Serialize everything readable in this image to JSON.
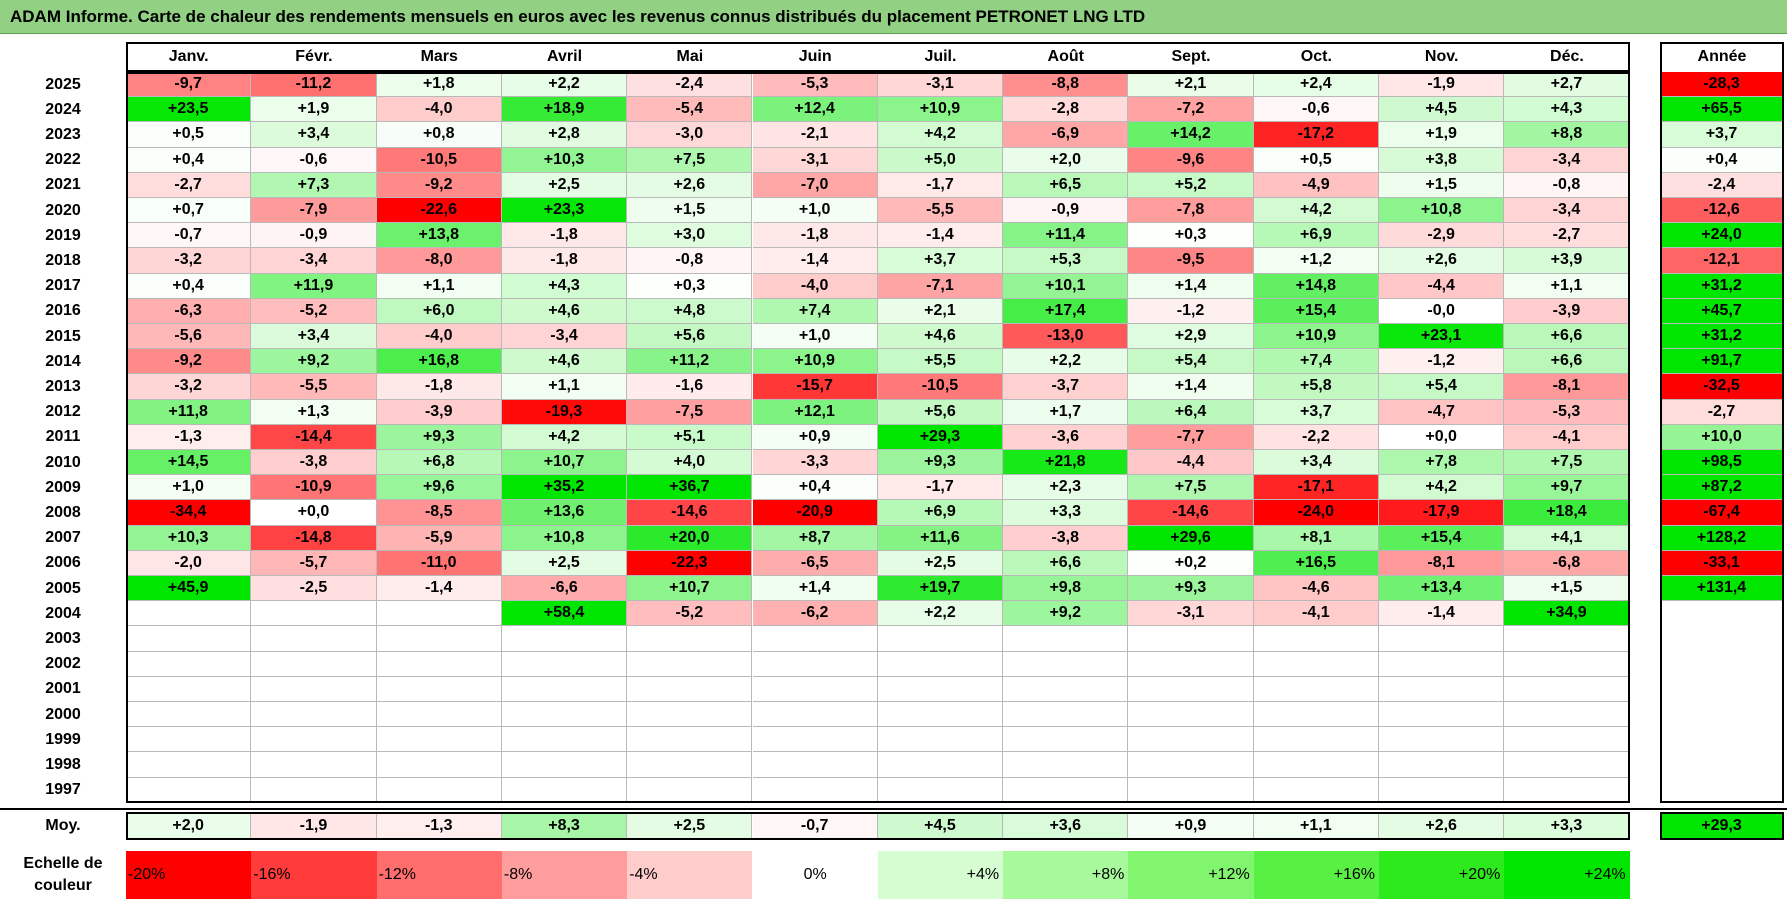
{
  "title": "ADAM Informe. Carte de chaleur des rendements mensuels en euros avec les revenus connus distribués du placement PETRONET LNG LTD",
  "chart_data": {
    "type": "heatmap",
    "columns": [
      "Janv.",
      "Févr.",
      "Mars",
      "Avril",
      "Mai",
      "Juin",
      "Juil.",
      "Août",
      "Sept.",
      "Oct.",
      "Nov.",
      "Déc."
    ],
    "year_header": "Année",
    "rows": [
      {
        "year": "2025",
        "values": [
          -9.7,
          -11.2,
          1.8,
          2.2,
          -2.4,
          -5.3,
          -3.1,
          -8.8,
          2.1,
          2.4,
          -1.9,
          2.7
        ],
        "annual": -28.3
      },
      {
        "year": "2024",
        "values": [
          23.5,
          1.9,
          -4.0,
          18.9,
          -5.4,
          12.4,
          10.9,
          -2.8,
          -7.2,
          -0.6,
          4.5,
          4.3
        ],
        "annual": 65.5
      },
      {
        "year": "2023",
        "values": [
          0.5,
          3.4,
          0.8,
          2.8,
          -3.0,
          -2.1,
          4.2,
          -6.9,
          14.2,
          -17.2,
          1.9,
          8.8
        ],
        "annual": 3.7
      },
      {
        "year": "2022",
        "values": [
          0.4,
          -0.6,
          -10.5,
          10.3,
          7.5,
          -3.1,
          5.0,
          2.0,
          -9.6,
          0.5,
          3.8,
          -3.4
        ],
        "annual": 0.4
      },
      {
        "year": "2021",
        "values": [
          -2.7,
          7.3,
          -9.2,
          2.5,
          2.6,
          -7.0,
          -1.7,
          6.5,
          5.2,
          -4.9,
          1.5,
          -0.8
        ],
        "annual": -2.4
      },
      {
        "year": "2020",
        "values": [
          0.7,
          -7.9,
          -22.6,
          23.3,
          1.5,
          1.0,
          -5.5,
          -0.9,
          -7.8,
          4.2,
          10.8,
          -3.4
        ],
        "annual": -12.6
      },
      {
        "year": "2019",
        "values": [
          -0.7,
          -0.9,
          13.8,
          -1.8,
          3.0,
          -1.8,
          -1.4,
          11.4,
          0.3,
          6.9,
          -2.9,
          -2.7
        ],
        "annual": 24.0
      },
      {
        "year": "2018",
        "values": [
          -3.2,
          -3.4,
          -8.0,
          -1.8,
          -0.8,
          -1.4,
          3.7,
          5.3,
          -9.5,
          1.2,
          2.6,
          3.9
        ],
        "annual": -12.1
      },
      {
        "year": "2017",
        "values": [
          0.4,
          11.9,
          1.1,
          4.3,
          0.3,
          -4.0,
          -7.1,
          10.1,
          1.4,
          14.8,
          -4.4,
          1.1
        ],
        "annual": 31.2
      },
      {
        "year": "2016",
        "values": [
          -6.3,
          -5.2,
          6.0,
          4.6,
          4.8,
          7.4,
          2.1,
          17.4,
          -1.2,
          15.4,
          -0.0,
          -3.9
        ],
        "annual": 45.7
      },
      {
        "year": "2015",
        "values": [
          -5.6,
          3.4,
          -4.0,
          -3.4,
          5.6,
          1.0,
          4.6,
          -13.0,
          2.9,
          10.9,
          23.1,
          6.6
        ],
        "annual": 31.2
      },
      {
        "year": "2014",
        "values": [
          -9.2,
          9.2,
          16.8,
          4.6,
          11.2,
          10.9,
          5.5,
          2.2,
          5.4,
          7.4,
          -1.2,
          6.6
        ],
        "annual": 91.7
      },
      {
        "year": "2013",
        "values": [
          -3.2,
          -5.5,
          -1.8,
          1.1,
          -1.6,
          -15.7,
          -10.5,
          -3.7,
          1.4,
          5.8,
          5.4,
          -8.1
        ],
        "annual": -32.5
      },
      {
        "year": "2012",
        "values": [
          11.8,
          1.3,
          -3.9,
          -19.3,
          -7.5,
          12.1,
          5.6,
          1.7,
          6.4,
          3.7,
          -4.7,
          -5.3
        ],
        "annual": -2.7
      },
      {
        "year": "2011",
        "values": [
          -1.3,
          -14.4,
          9.3,
          4.2,
          5.1,
          0.9,
          29.3,
          -3.6,
          -7.7,
          -2.2,
          0.0,
          -4.1
        ],
        "annual": 10.0
      },
      {
        "year": "2010",
        "values": [
          14.5,
          -3.8,
          6.8,
          10.7,
          4.0,
          -3.3,
          9.3,
          21.8,
          -4.4,
          3.4,
          7.8,
          7.5
        ],
        "annual": 98.5
      },
      {
        "year": "2009",
        "values": [
          1.0,
          -10.9,
          9.6,
          35.2,
          36.7,
          0.4,
          -1.7,
          2.3,
          7.5,
          -17.1,
          4.2,
          9.7
        ],
        "annual": 87.2
      },
      {
        "year": "2008",
        "values": [
          -34.4,
          0.0,
          -8.5,
          13.6,
          -14.6,
          -20.9,
          6.9,
          3.3,
          -14.6,
          -24.0,
          -17.9,
          18.4
        ],
        "annual": -67.4
      },
      {
        "year": "2007",
        "values": [
          10.3,
          -14.8,
          -5.9,
          10.8,
          20.0,
          8.7,
          11.6,
          -3.8,
          29.6,
          8.1,
          15.4,
          4.1
        ],
        "annual": 128.2
      },
      {
        "year": "2006",
        "values": [
          -2.0,
          -5.7,
          -11.0,
          2.5,
          -22.3,
          -6.5,
          2.5,
          6.6,
          0.2,
          16.5,
          -8.1,
          -6.8
        ],
        "annual": -33.1
      },
      {
        "year": "2005",
        "values": [
          45.9,
          -2.5,
          -1.4,
          -6.6,
          10.7,
          1.4,
          19.7,
          9.8,
          9.3,
          -4.6,
          13.4,
          1.5
        ],
        "annual": 131.4
      },
      {
        "year": "2004",
        "values": [
          null,
          null,
          null,
          58.4,
          -5.2,
          -6.2,
          2.2,
          9.2,
          -3.1,
          -4.1,
          -1.4,
          34.9
        ],
        "annual": null
      },
      {
        "year": "2003",
        "values": [
          null,
          null,
          null,
          null,
          null,
          null,
          null,
          null,
          null,
          null,
          null,
          null
        ],
        "annual": null
      },
      {
        "year": "2002",
        "values": [
          null,
          null,
          null,
          null,
          null,
          null,
          null,
          null,
          null,
          null,
          null,
          null
        ],
        "annual": null
      },
      {
        "year": "2001",
        "values": [
          null,
          null,
          null,
          null,
          null,
          null,
          null,
          null,
          null,
          null,
          null,
          null
        ],
        "annual": null
      },
      {
        "year": "2000",
        "values": [
          null,
          null,
          null,
          null,
          null,
          null,
          null,
          null,
          null,
          null,
          null,
          null
        ],
        "annual": null
      },
      {
        "year": "1999",
        "values": [
          null,
          null,
          null,
          null,
          null,
          null,
          null,
          null,
          null,
          null,
          null,
          null
        ],
        "annual": null
      },
      {
        "year": "1998",
        "values": [
          null,
          null,
          null,
          null,
          null,
          null,
          null,
          null,
          null,
          null,
          null,
          null
        ],
        "annual": null
      },
      {
        "year": "1997",
        "values": [
          null,
          null,
          null,
          null,
          null,
          null,
          null,
          null,
          null,
          null,
          null,
          null
        ],
        "annual": null
      }
    ],
    "average": {
      "label": "Moy.",
      "values": [
        2.0,
        -1.9,
        -1.3,
        8.3,
        2.5,
        -0.7,
        4.5,
        3.6,
        0.9,
        1.1,
        2.6,
        3.3
      ],
      "annual": 29.3
    },
    "color_scale": {
      "label": "Echelle de couleur",
      "steps": [
        {
          "value": -20,
          "label": "-20%",
          "color": "#ff0000"
        },
        {
          "value": -16,
          "label": "-16%",
          "color": "#ff3b3b"
        },
        {
          "value": -12,
          "label": "-12%",
          "color": "#ff6d6d"
        },
        {
          "value": -8,
          "label": "-8%",
          "color": "#ff9d9d"
        },
        {
          "value": -4,
          "label": "-4%",
          "color": "#ffcccc"
        },
        {
          "value": 0,
          "label": "0%",
          "color": "#ffffff"
        },
        {
          "value": 4,
          "label": "+4%",
          "color": "#d6fdd2"
        },
        {
          "value": 8,
          "label": "+8%",
          "color": "#a8f99c"
        },
        {
          "value": 12,
          "label": "+12%",
          "color": "#82f56f"
        },
        {
          "value": 16,
          "label": "+16%",
          "color": "#58f043"
        },
        {
          "value": 20,
          "label": "+20%",
          "color": "#2cea1c"
        },
        {
          "value": 24,
          "label": "+24%",
          "color": "#00e600"
        }
      ]
    }
  }
}
